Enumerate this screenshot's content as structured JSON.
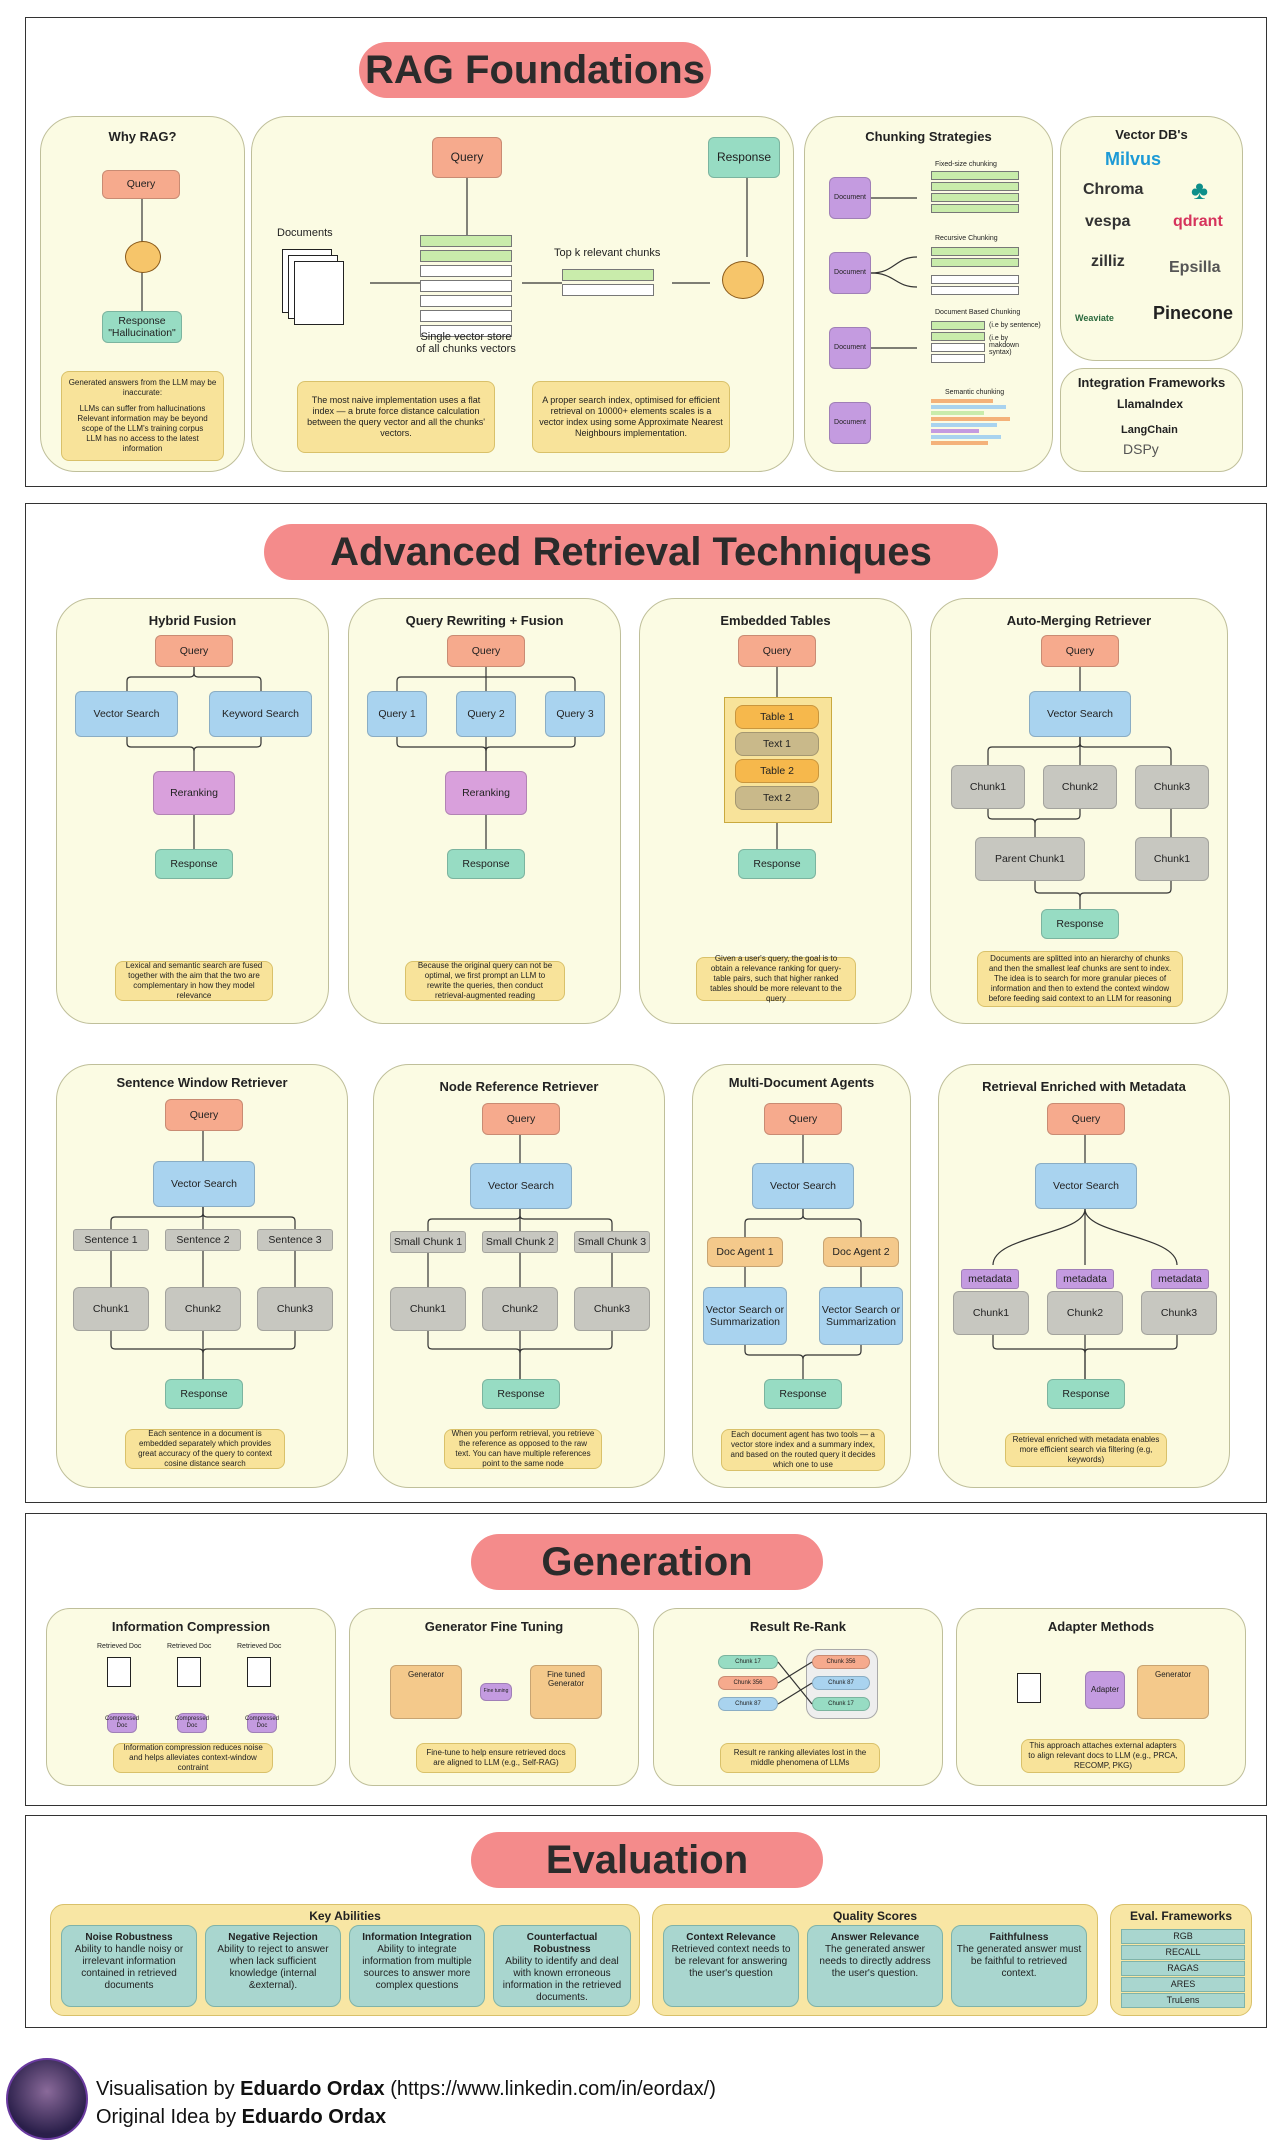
{
  "sections": {
    "rag": {
      "title": "RAG Foundations"
    },
    "advanced": {
      "title": "Advanced Retrieval Techniques"
    },
    "generation": {
      "title": "Generation"
    },
    "evaluation": {
      "title": "Evaluation"
    }
  },
  "why_rag": {
    "title": "Why RAG?",
    "query": "Query",
    "response": "Response\n\"Hallucination\"",
    "note_intro": "Generated answers from the LLM may be inaccurate:",
    "note_items": [
      "LLMs can suffer from hallucinations",
      "Relevant information may be beyond scope of the LLM's training corpus",
      "LLM has no access to the latest information"
    ]
  },
  "naive": {
    "query": "Query",
    "response": "Response",
    "documents": "Documents",
    "topk": "Top k relevant chunks",
    "store": "Single vector store\nof all chunks vectors",
    "note1": "The most naive implementation uses a flat index — a brute force distance calculation between the query vector and all the chunks' vectors.",
    "note2": "A proper search index, optimised for efficient retrieval on 10000+ elements scales is a vector index using some Approximate Nearest Neighbours implementation."
  },
  "chunking": {
    "title": "Chunking Strategies",
    "doc": "Document",
    "fixed": "Fixed-size chunking",
    "recursive": "Recursive Chunking",
    "docbased": "Document Based Chunking",
    "by_sentence": "(i.e by sentence)",
    "by_markdown": "(i.e by makdown syntax)",
    "semantic": "Semantic chunking"
  },
  "vectordb": {
    "title": "Vector DB's",
    "logos": [
      "Milvus",
      "Chroma",
      "vespa",
      "qdrant",
      "zilliz",
      "Epsilla",
      "Weaviate",
      "Pinecone"
    ]
  },
  "integration": {
    "title": "Integration Frameworks",
    "items": [
      "LlamaIndex",
      "LangChain",
      "DSPy"
    ]
  },
  "hybrid": {
    "title": "Hybrid Fusion",
    "query": "Query",
    "vector": "Vector Search",
    "keyword": "Keyword Search",
    "rerank": "Reranking",
    "response": "Response",
    "note": "Lexical and semantic search are fused together with the aim that the two are complementary in how they model relevance"
  },
  "rewrite": {
    "title": "Query Rewriting + Fusion",
    "query": "Query",
    "q1": "Query 1",
    "q2": "Query 2",
    "q3": "Query 3",
    "rerank": "Reranking",
    "response": "Response",
    "note": "Because the original query can not be optimal, we first prompt an LLM to rewrite the queries, then conduct retrieval-augmented reading"
  },
  "tables": {
    "title": "Embedded Tables",
    "query": "Query",
    "items": [
      "Table 1",
      "Text 1",
      "Table 2",
      "Text 2"
    ],
    "response": "Response",
    "note": "Given a user's query, the goal is to obtain a relevance ranking for query-table pairs, such that higher ranked tables should be more relevant to the query"
  },
  "automerge": {
    "title": "Auto-Merging Retriever",
    "query": "Query",
    "vector": "Vector Search",
    "c1": "Chunk1",
    "c2": "Chunk2",
    "c3": "Chunk3",
    "parent": "Parent Chunk1",
    "c1b": "Chunk1",
    "response": "Response",
    "note": "Documents are splitted into an hierarchy of chunks and then the smallest leaf chunks are sent to index. The idea is to search for more granular pieces of information and then to extend the context window before feeding said context to an LLM for reasoning"
  },
  "sentence": {
    "title": "Sentence Window Retriever",
    "query": "Query",
    "vector": "Vector Search",
    "s1": "Sentence 1",
    "s2": "Sentence 2",
    "s3": "Sentence 3",
    "c1": "Chunk1",
    "c2": "Chunk2",
    "c3": "Chunk3",
    "response": "Response",
    "note": "Each sentence in a document is embedded separately which provides great accuracy of the query to context cosine distance search"
  },
  "noderef": {
    "title": "Node Reference Retriever",
    "query": "Query",
    "vector": "Vector Search",
    "s1": "Small Chunk 1",
    "s2": "Small Chunk 2",
    "s3": "Small Chunk 3",
    "c1": "Chunk1",
    "c2": "Chunk2",
    "c3": "Chunk3",
    "response": "Response",
    "note": "When you perform retrieval, you retrieve the reference as opposed to the raw text. You can have multiple references point to the same node"
  },
  "multidoc": {
    "title": "Multi-Document Agents",
    "query": "Query",
    "vector": "Vector Search",
    "a1": "Doc Agent 1",
    "a2": "Doc Agent 2",
    "v1": "Vector Search or Summarization",
    "v2": "Vector Search or Summarization",
    "response": "Response",
    "note": "Each document agent has two tools — a vector store index and a summary index, and based on the routed query it decides which one to use"
  },
  "metadata": {
    "title": "Retrieval Enriched with Metadata",
    "query": "Query",
    "vector": "Vector Search",
    "m": "metadata",
    "c1": "Chunk1",
    "c2": "Chunk2",
    "c3": "Chunk3",
    "response": "Response",
    "note": "Retrieval enriched with metadata enables more efficient search via filtering (e.g, keywords)"
  },
  "compression": {
    "title": "Information Compression",
    "doc": "Retrieved Doc",
    "comp": "Compressed Doc",
    "note": "Information compression reduces noise and helps alleviates context-window contraint"
  },
  "finetune": {
    "title": "Generator Fine Tuning",
    "gen": "Generator",
    "ft": "Fine tuning",
    "tuned": "Fine tuned Generator",
    "note": "Fine-tune to help ensure retrieved docs are aligned to LLM (e.g., Self-RAG)"
  },
  "rerank": {
    "title": "Result Re-Rank",
    "left": [
      "Chunk 17",
      "Chunk 356",
      "Chunk 87"
    ],
    "right": [
      "Chunk 356",
      "Chunk 87",
      "Chunk 17"
    ],
    "note": "Result re ranking alleviates lost in the middle phenomena of LLMs"
  },
  "adapter": {
    "title": "Adapter Methods",
    "adapter": "Adapter",
    "gen": "Generator",
    "note": "This approach attaches external adapters to align relevant docs to LLM (e.g., PRCA, RECOMP, PKG)"
  },
  "eval": {
    "key_title": "Key Abilities",
    "abilities": [
      {
        "name": "Noise Robustness",
        "desc": "Ability to handle noisy or irrelevant information contained in retrieved documents"
      },
      {
        "name": "Negative Rejection",
        "desc": "Ability to reject to answer when lack sufficient knowledge (internal &external)."
      },
      {
        "name": "Information Integration",
        "desc": "Ability to integrate information from multiple sources to answer more complex questions"
      },
      {
        "name": "Counterfactual Robustness",
        "desc": "Ability to identify and deal with known erroneous information in the retrieved documents."
      }
    ],
    "quality_title": "Quality Scores",
    "scores": [
      {
        "name": "Context Relevance",
        "desc": "Retrieved context needs to be relevant for answering the user's question"
      },
      {
        "name": "Answer Relevance",
        "desc": "The generated answer needs to directly address the user's question."
      },
      {
        "name": "Faithfulness",
        "desc": "The generated answer must be faithful to retrieved context."
      }
    ],
    "frameworks_title": "Eval. Frameworks",
    "frameworks": [
      "RGB",
      "RECALL",
      "RAGAS",
      "ARES",
      "TruLens"
    ]
  },
  "footer": {
    "line1_prefix": "Visualisation by ",
    "line1_name": "Eduardo Ordax",
    "line1_suffix": " (https://www.linkedin.com/in/eordax/)",
    "line2_prefix": "Original Idea by ",
    "line2_name": "Eduardo Ordax"
  },
  "colors": {
    "banner": "#f48b8b",
    "card": "#fbfbe3",
    "query": "#f6aa8d",
    "vector": "#a9d3ef",
    "rerank": "#d9a0dc",
    "response": "#97dcc3"
  }
}
